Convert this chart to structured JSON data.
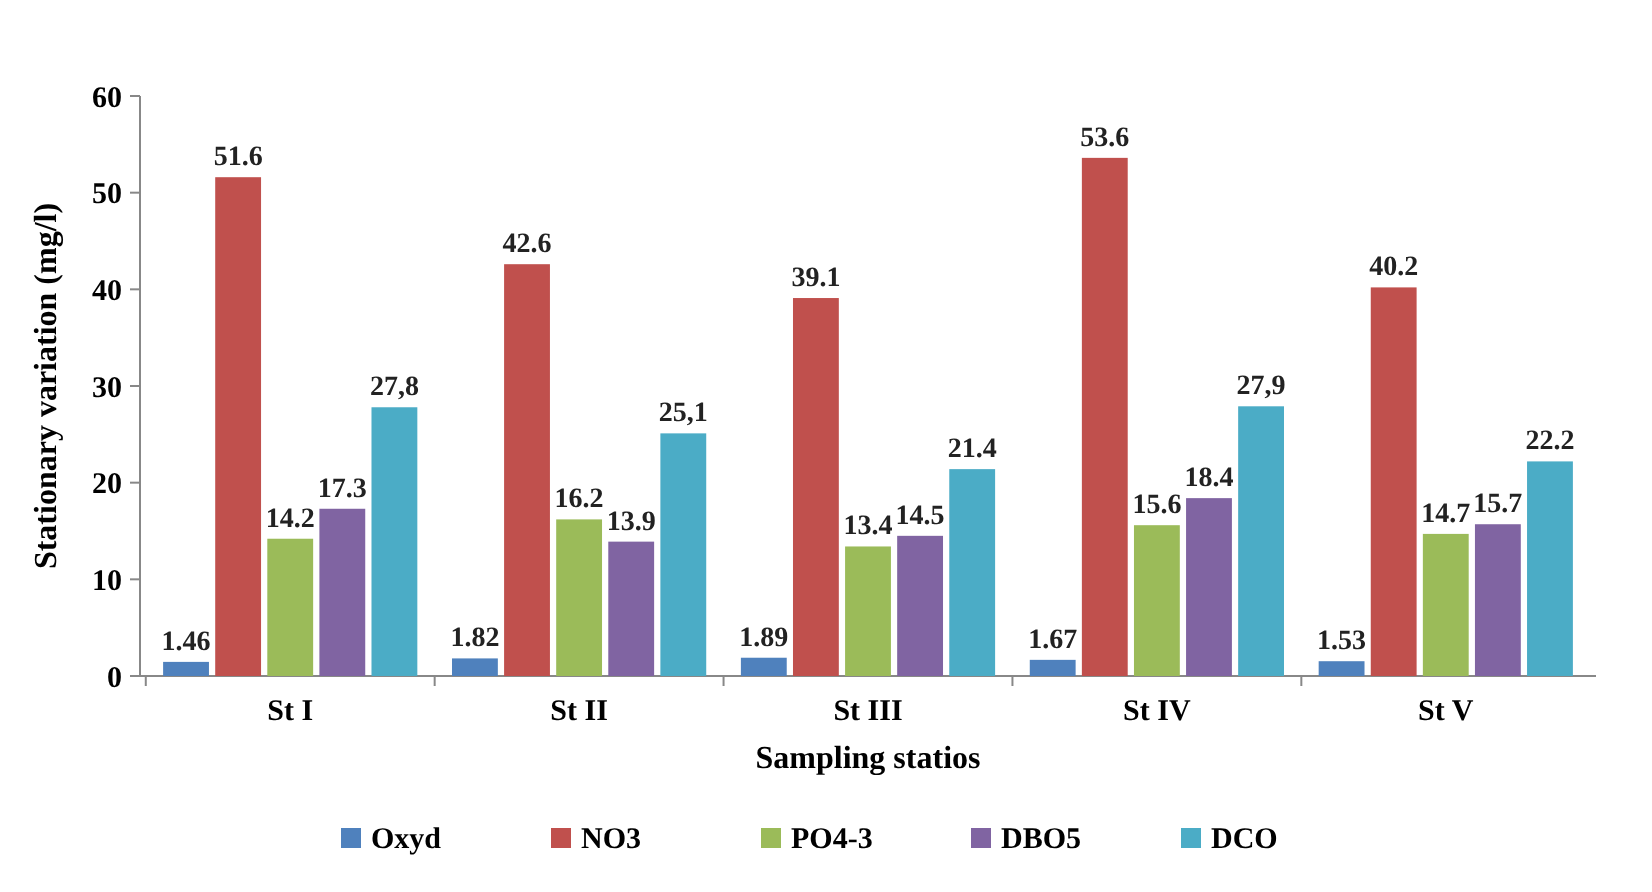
{
  "chart_data": {
    "type": "bar",
    "xlabel": "Sampling statios",
    "ylabel": "Stationary variation (mg/l)",
    "categories": [
      "St I",
      "St II",
      "St III",
      "St IV",
      "St V"
    ],
    "series": [
      {
        "name": "Oxyd",
        "color": "#4f81bd",
        "values": [
          1.46,
          1.82,
          1.89,
          1.67,
          1.53
        ],
        "value_labels": [
          "1.46",
          "1.82",
          "1.89",
          "1.67",
          "1.53"
        ]
      },
      {
        "name": "NO3",
        "color": "#c0504d",
        "values": [
          51.6,
          42.6,
          39.1,
          53.6,
          40.2
        ],
        "value_labels": [
          "51.6",
          "42.6",
          "39.1",
          "53.6",
          "40.2"
        ]
      },
      {
        "name": "PO4-3",
        "color": "#9bbb59",
        "values": [
          14.2,
          16.2,
          13.4,
          15.6,
          14.7
        ],
        "value_labels": [
          "14.2",
          "16.2",
          "13.4",
          "15.6",
          "14.7"
        ]
      },
      {
        "name": "DBO5",
        "color": "#8064a2",
        "values": [
          17.3,
          13.9,
          14.5,
          18.4,
          15.7
        ],
        "value_labels": [
          "17.3",
          "13.9",
          "14.5",
          "18.4",
          "15.7"
        ]
      },
      {
        "name": "DCO",
        "color": "#4bacc6",
        "values": [
          27.8,
          25.1,
          21.4,
          27.9,
          22.2
        ],
        "value_labels": [
          "27,8",
          "25,1",
          "21.4",
          "27,9",
          "22.2"
        ]
      }
    ],
    "ylim": [
      0,
      60
    ],
    "yticks": [
      0,
      10,
      20,
      30,
      40,
      50,
      60
    ],
    "grid": false,
    "legend": "bottom"
  }
}
